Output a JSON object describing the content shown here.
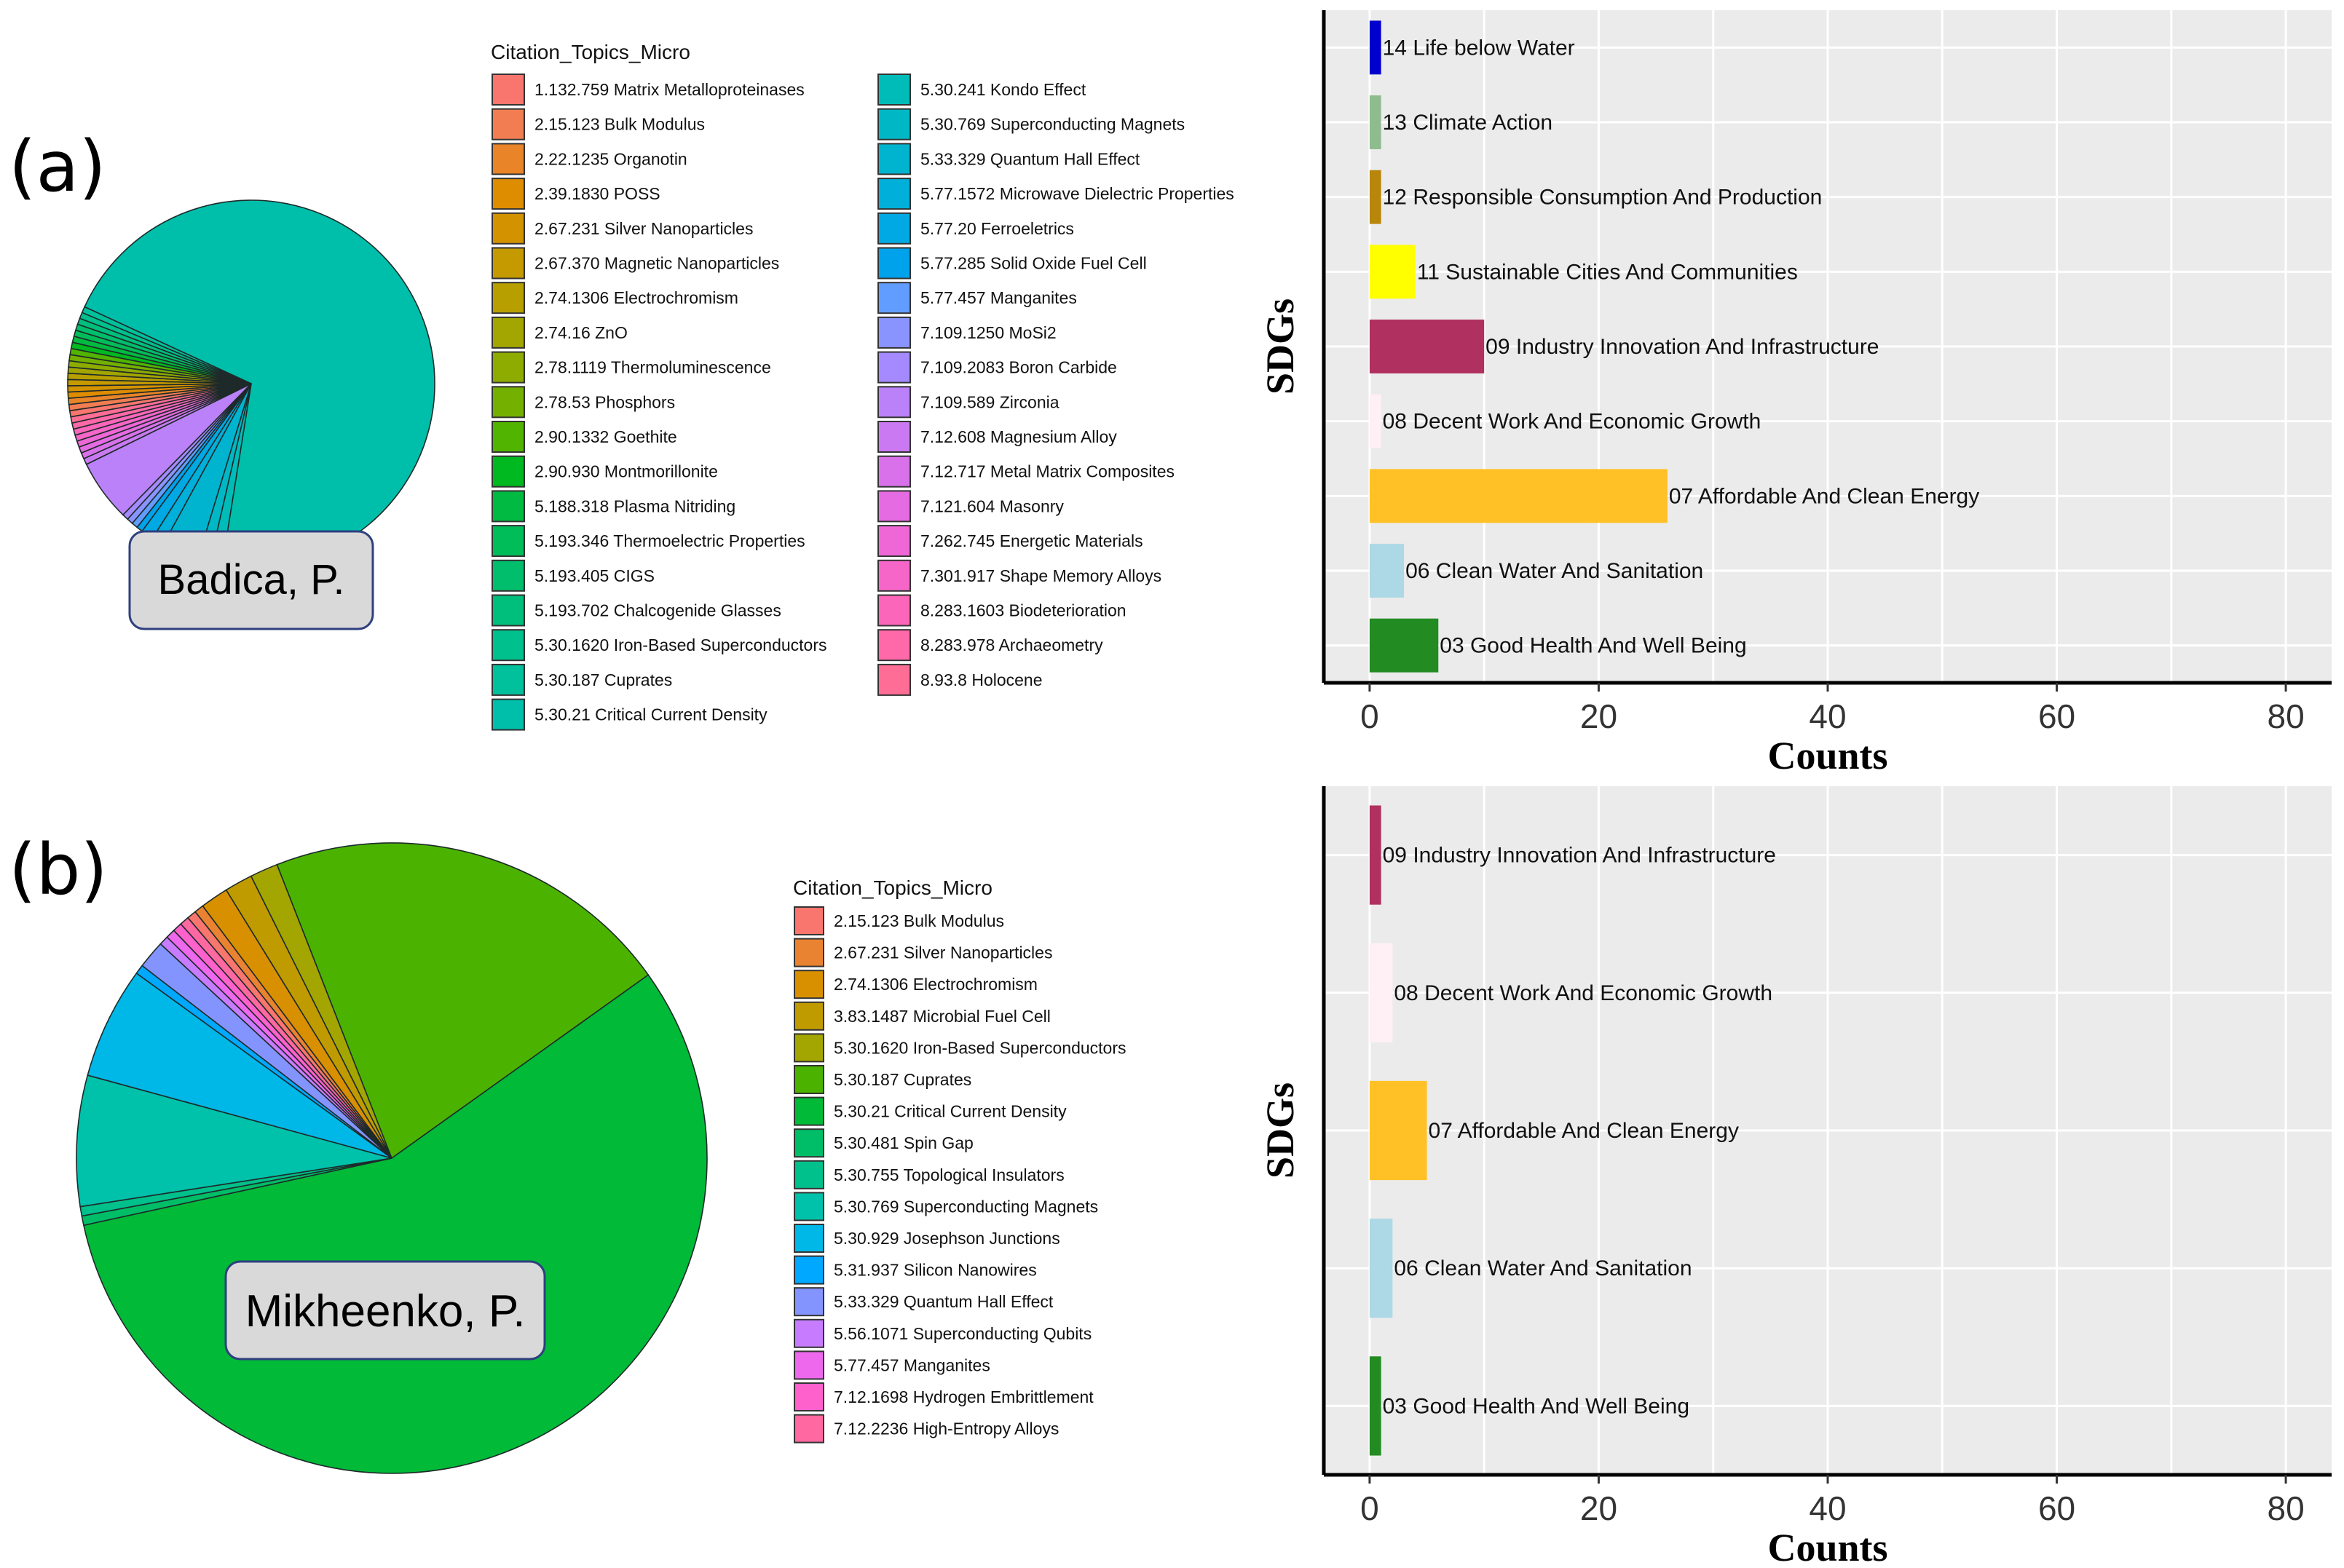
{
  "colors": {
    "plot_background": "#ebebeb",
    "grid": "#ffffff",
    "name_box_fill": "#d9d9d9",
    "name_box_border": "#2f3f7f"
  },
  "chart_data": [
    {
      "type": "pie",
      "panel": "(a)",
      "author": "Badica, P.",
      "legend_title": "Citation_Topics_Micro",
      "series": [
        {
          "name": "1.132.759 Matrix Metalloproteinases",
          "value": 0.5,
          "color": "#F8766D"
        },
        {
          "name": "2.15.123 Bulk Modulus",
          "value": 0.5,
          "color": "#F27D52"
        },
        {
          "name": "2.22.1235 Organotin",
          "value": 0.5,
          "color": "#E98428"
        },
        {
          "name": "2.39.1830 POSS",
          "value": 0.5,
          "color": "#DE8C00"
        },
        {
          "name": "2.67.231 Silver Nanoparticles",
          "value": 0.5,
          "color": "#D39200"
        },
        {
          "name": "2.67.370 Magnetic Nanoparticles",
          "value": 0.5,
          "color": "#C59900"
        },
        {
          "name": "2.74.1306 Electrochromism",
          "value": 0.5,
          "color": "#B79F00"
        },
        {
          "name": "2.74.16 ZnO",
          "value": 0.5,
          "color": "#A3A500"
        },
        {
          "name": "2.78.1119 Thermoluminescence",
          "value": 0.5,
          "color": "#8EAB00"
        },
        {
          "name": "2.78.53 Phosphors",
          "value": 0.5,
          "color": "#74B000"
        },
        {
          "name": "2.90.1332 Goethite",
          "value": 0.5,
          "color": "#50B400"
        },
        {
          "name": "2.90.930 Montmorillonite",
          "value": 0.5,
          "color": "#00B81F"
        },
        {
          "name": "5.188.318 Plasma Nitriding",
          "value": 0.5,
          "color": "#00BA42"
        },
        {
          "name": "5.193.346 Thermoelectric Properties",
          "value": 0.5,
          "color": "#00BC59"
        },
        {
          "name": "5.193.405 CIGS",
          "value": 0.5,
          "color": "#00BE6C"
        },
        {
          "name": "5.193.702 Chalcogenide Glasses",
          "value": 0.5,
          "color": "#00BF7D"
        },
        {
          "name": "5.30.1620 Iron-Based Superconductors",
          "value": 0.5,
          "color": "#00C08D"
        },
        {
          "name": "5.30.187 Cuprates",
          "value": 0.5,
          "color": "#00C19C"
        },
        {
          "name": "5.30.21 Critical Current Density",
          "value": 65,
          "color": "#00BFAA"
        },
        {
          "name": "5.30.241 Kondo Effect",
          "value": 1,
          "color": "#00BCB8"
        },
        {
          "name": "5.30.769 Superconducting Magnets",
          "value": 1,
          "color": "#00B8C5"
        },
        {
          "name": "5.33.329 Quantum Hall Effect",
          "value": 3,
          "color": "#00B4D0"
        },
        {
          "name": "5.77.1572 Microwave Dielectric Properties",
          "value": 1,
          "color": "#00AFDA"
        },
        {
          "name": "5.77.20 Ferroeletrics",
          "value": 1,
          "color": "#00A9E3"
        },
        {
          "name": "5.77.285 Solid Oxide Fuel Cell",
          "value": 0.5,
          "color": "#00A2EB"
        },
        {
          "name": "5.77.457 Manganites",
          "value": 0.5,
          "color": "#619CFF"
        },
        {
          "name": "7.109.1250 MoSi2",
          "value": 0.5,
          "color": "#8994FF"
        },
        {
          "name": "7.109.2083 Boron Carbide",
          "value": 0.5,
          "color": "#A58AFF"
        },
        {
          "name": "7.109.589 Zirconia",
          "value": 5,
          "color": "#BA81F9"
        },
        {
          "name": "7.12.608 Magnesium Alloy",
          "value": 0.5,
          "color": "#CB79F3"
        },
        {
          "name": "7.12.717 Metal Matrix Composites",
          "value": 0.5,
          "color": "#D971EB"
        },
        {
          "name": "7.121.604 Masonry",
          "value": 0.5,
          "color": "#E56BE2"
        },
        {
          "name": "7.262.745 Energetic Materials",
          "value": 0.5,
          "color": "#EF67D7"
        },
        {
          "name": "7.301.917 Shape Memory Alloys",
          "value": 0.5,
          "color": "#F666C9"
        },
        {
          "name": "8.283.1603 Biodeterioration",
          "value": 0.5,
          "color": "#FC66BA"
        },
        {
          "name": "8.283.978 Archaeometry",
          "value": 0.5,
          "color": "#FF68A9"
        },
        {
          "name": "8.93.8 Holocene",
          "value": 0.5,
          "color": "#FE6D96"
        }
      ]
    },
    {
      "type": "bar",
      "panel": "(a)",
      "orientation": "horizontal",
      "xlabel": "Counts",
      "ylabel": "SDGs",
      "xlim": [
        -4,
        84
      ],
      "xticks": [
        0,
        20,
        40,
        60,
        80
      ],
      "categories": [
        "03 Good Health And Well Being",
        "06 Clean Water And Sanitation",
        "07 Affordable And Clean Energy",
        "08 Decent Work And Economic Growth",
        "09 Industry Innovation And Infrastructure",
        "11 Sustainable Cities And Communities",
        "12 Responsible Consumption And Production",
        "13 Climate Action",
        "14 Life below Water"
      ],
      "values": [
        6,
        3,
        26,
        1,
        10,
        4,
        1,
        1,
        1
      ],
      "colors": [
        "#228B22",
        "#ADD8E6",
        "#FFC125",
        "#FFF0F5",
        "#B03060",
        "#FFFF00",
        "#B8860B",
        "#8FBC8F",
        "#0000CD"
      ]
    },
    {
      "type": "pie",
      "panel": "(b)",
      "author": "Mikheenko, P.",
      "legend_title": "Citation_Topics_Micro",
      "series": [
        {
          "name": "2.15.123 Bulk Modulus",
          "value": 0.5,
          "color": "#F8766D"
        },
        {
          "name": "2.67.231 Silver Nanoparticles",
          "value": 0.5,
          "color": "#EA8331"
        },
        {
          "name": "2.74.1306 Electrochromism",
          "value": 1.5,
          "color": "#D89000"
        },
        {
          "name": "3.83.1487 Microbial Fuel Cell",
          "value": 1.5,
          "color": "#C09B00"
        },
        {
          "name": "5.30.1620 Iron-Based Superconductors",
          "value": 1.5,
          "color": "#A3A500"
        },
        {
          "name": "5.30.187 Cuprates",
          "value": 22,
          "color": "#4BB300"
        },
        {
          "name": "5.30.21 Critical Current Density",
          "value": 59,
          "color": "#00BA38"
        },
        {
          "name": "5.30.481 Spin Gap",
          "value": 0.5,
          "color": "#00BE67"
        },
        {
          "name": "5.30.755 Topological Insulators",
          "value": 0.5,
          "color": "#00C08B"
        },
        {
          "name": "5.30.769 Superconducting Magnets",
          "value": 7,
          "color": "#00C1AA"
        },
        {
          "name": "5.30.929 Josephson Junctions",
          "value": 6,
          "color": "#00B8E7"
        },
        {
          "name": "5.31.937 Silicon Nanowires",
          "value": 0.5,
          "color": "#00A9FF"
        },
        {
          "name": "5.33.329 Quantum Hall Effect",
          "value": 1.5,
          "color": "#8494FF"
        },
        {
          "name": "5.56.1071 Superconducting Qubits",
          "value": 0.5,
          "color": "#C77CFF"
        },
        {
          "name": "5.77.457 Manganites",
          "value": 0.5,
          "color": "#ED68ED"
        },
        {
          "name": "7.12.1698 Hydrogen Embrittlement",
          "value": 0.5,
          "color": "#FF61CC"
        },
        {
          "name": "7.12.2236 High-Entropy Alloys",
          "value": 0.5,
          "color": "#FF68A1"
        }
      ]
    },
    {
      "type": "bar",
      "panel": "(b)",
      "orientation": "horizontal",
      "xlabel": "Counts",
      "ylabel": "SDGs",
      "xlim": [
        -4,
        84
      ],
      "xticks": [
        0,
        20,
        40,
        60,
        80
      ],
      "categories": [
        "03 Good Health And Well Being",
        "06 Clean Water And Sanitation",
        "07 Affordable And Clean Energy",
        "08 Decent Work And Economic Growth",
        "09 Industry Innovation And Infrastructure"
      ],
      "values": [
        1,
        2,
        5,
        2,
        1
      ],
      "colors": [
        "#228B22",
        "#ADD8E6",
        "#FFC125",
        "#FFF0F5",
        "#B03060"
      ]
    }
  ]
}
